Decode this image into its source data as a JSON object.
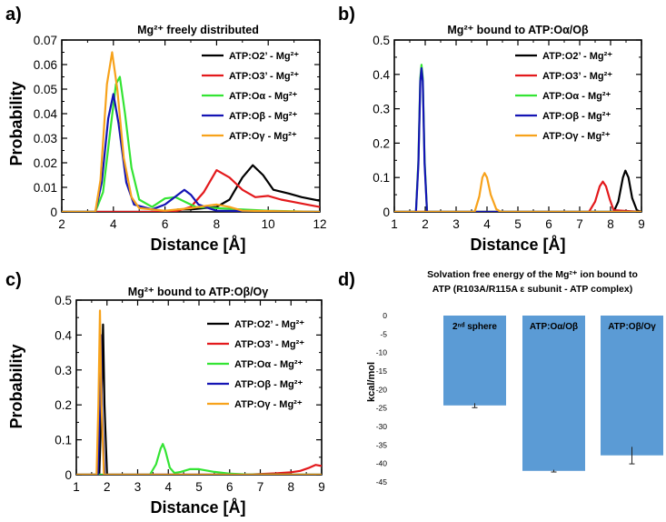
{
  "panels": [
    "a)",
    "b)",
    "c)",
    "d)"
  ],
  "chart_data": [
    {
      "panel": "a)",
      "type": "line",
      "title": "Mg²⁺ freely distributed",
      "xlabel": "Distance [Å]",
      "ylabel": "Probability",
      "xlim": [
        2,
        12
      ],
      "ylim": [
        0,
        0.07
      ],
      "xticks": [
        2,
        4,
        6,
        8,
        10,
        12
      ],
      "yticks": [
        0,
        0.01,
        0.02,
        0.03,
        0.04,
        0.05,
        0.06,
        0.07
      ],
      "ytick_labels": [
        "0",
        "0.01",
        "0.02",
        "0.03",
        "0.04",
        "0.05",
        "0.06",
        "0.07"
      ],
      "legend_position": "top-right",
      "series": [
        {
          "name": "ATP:O2’ - Mg²⁺",
          "color": "#000000",
          "points": [
            [
              2,
              0
            ],
            [
              6,
              0
            ],
            [
              6.5,
              0.001
            ],
            [
              7,
              0.001
            ],
            [
              7.5,
              0.0015
            ],
            [
              8,
              0.002
            ],
            [
              8.5,
              0.005
            ],
            [
              9,
              0.014
            ],
            [
              9.4,
              0.019
            ],
            [
              9.8,
              0.015
            ],
            [
              10.2,
              0.009
            ],
            [
              10.8,
              0.0075
            ],
            [
              11.3,
              0.006
            ],
            [
              12,
              0.0045
            ]
          ]
        },
        {
          "name": "ATP:O3’ - Mg²⁺",
          "color": "#e3191c",
          "points": [
            [
              2,
              0
            ],
            [
              6,
              0
            ],
            [
              6.5,
              0.0005
            ],
            [
              7,
              0.002
            ],
            [
              7.5,
              0.008
            ],
            [
              8,
              0.017
            ],
            [
              8.5,
              0.014
            ],
            [
              9,
              0.009
            ],
            [
              9.5,
              0.006
            ],
            [
              10,
              0.0065
            ],
            [
              10.5,
              0.005
            ],
            [
              11,
              0.004
            ],
            [
              11.5,
              0.003
            ],
            [
              12,
              0.002
            ]
          ]
        },
        {
          "name": "ATP:Oα  - Mg²⁺",
          "color": "#33e433",
          "points": [
            [
              2,
              0
            ],
            [
              3.3,
              0
            ],
            [
              3.6,
              0.008
            ],
            [
              3.9,
              0.035
            ],
            [
              4.1,
              0.052
            ],
            [
              4.25,
              0.055
            ],
            [
              4.45,
              0.04
            ],
            [
              4.7,
              0.018
            ],
            [
              5,
              0.005
            ],
            [
              5.5,
              0.002
            ],
            [
              6,
              0.0055
            ],
            [
              6.4,
              0.006
            ],
            [
              6.8,
              0.004
            ],
            [
              7.2,
              0.002
            ],
            [
              8,
              0.0015
            ],
            [
              9,
              0.001
            ],
            [
              10,
              0.0005
            ],
            [
              12,
              0
            ]
          ]
        },
        {
          "name": "ATP:Oβ  - Mg²⁺",
          "color": "#1414b4",
          "points": [
            [
              2,
              0
            ],
            [
              3.3,
              0
            ],
            [
              3.55,
              0.012
            ],
            [
              3.8,
              0.038
            ],
            [
              4,
              0.048
            ],
            [
              4.2,
              0.036
            ],
            [
              4.5,
              0.012
            ],
            [
              4.8,
              0.003
            ],
            [
              5.5,
              0.001
            ],
            [
              6,
              0.003
            ],
            [
              6.5,
              0.007
            ],
            [
              6.75,
              0.009
            ],
            [
              7,
              0.007
            ],
            [
              7.3,
              0.003
            ],
            [
              7.7,
              0.0015
            ],
            [
              8,
              0.0005
            ],
            [
              12,
              0
            ]
          ]
        },
        {
          "name": "ATP:Oγ  - Mg²⁺",
          "color": "#f7a21b",
          "points": [
            [
              2,
              0
            ],
            [
              3.3,
              0
            ],
            [
              3.5,
              0.013
            ],
            [
              3.75,
              0.052
            ],
            [
              3.95,
              0.065
            ],
            [
              4.15,
              0.05
            ],
            [
              4.4,
              0.022
            ],
            [
              4.7,
              0.006
            ],
            [
              5,
              0.0015
            ],
            [
              5.5,
              0.001
            ],
            [
              6,
              0.0005
            ],
            [
              7,
              0.0015
            ],
            [
              7.6,
              0.0025
            ],
            [
              8,
              0.003
            ],
            [
              8.5,
              0.002
            ],
            [
              9,
              0.0005
            ],
            [
              12,
              0
            ]
          ]
        }
      ]
    },
    {
      "panel": "b)",
      "type": "line",
      "title": "Mg²⁺ bound to ATP:Oα/Oβ",
      "xlabel": "Distance [Å]",
      "ylabel": "",
      "xlim": [
        1,
        9
      ],
      "ylim": [
        0,
        0.5
      ],
      "xticks": [
        1,
        2,
        3,
        4,
        5,
        6,
        7,
        8,
        9
      ],
      "yticks": [
        0,
        0.1,
        0.2,
        0.3,
        0.4,
        0.5
      ],
      "ytick_labels": [
        "0",
        "0.1",
        "0.2",
        "0.3",
        "0.4",
        "0.5"
      ],
      "legend_position": "top-right",
      "series": [
        {
          "name": "ATP:O2’ - Mg²⁺",
          "color": "#000000",
          "points": [
            [
              1,
              0
            ],
            [
              8.1,
              0
            ],
            [
              8.25,
              0.03
            ],
            [
              8.4,
              0.1
            ],
            [
              8.48,
              0.12
            ],
            [
              8.58,
              0.1
            ],
            [
              8.7,
              0.04
            ],
            [
              8.85,
              0.005
            ],
            [
              9,
              0
            ]
          ]
        },
        {
          "name": "ATP:O3’ - Mg²⁺",
          "color": "#e3191c",
          "points": [
            [
              1,
              0
            ],
            [
              7.3,
              0
            ],
            [
              7.5,
              0.03
            ],
            [
              7.65,
              0.075
            ],
            [
              7.75,
              0.088
            ],
            [
              7.85,
              0.075
            ],
            [
              7.98,
              0.035
            ],
            [
              8.1,
              0.005
            ],
            [
              9,
              0
            ]
          ]
        },
        {
          "name": "ATP:Oα  - Mg²⁺",
          "color": "#33e433",
          "points": [
            [
              1,
              0
            ],
            [
              1.7,
              0
            ],
            [
              1.78,
              0.15
            ],
            [
              1.84,
              0.39
            ],
            [
              1.88,
              0.428
            ],
            [
              1.92,
              0.39
            ],
            [
              1.98,
              0.15
            ],
            [
              2.06,
              0
            ],
            [
              9,
              0
            ]
          ]
        },
        {
          "name": "ATP:Oβ  - Mg²⁺",
          "color": "#1414b4",
          "points": [
            [
              1,
              0
            ],
            [
              1.7,
              0
            ],
            [
              1.78,
              0.14
            ],
            [
              1.84,
              0.38
            ],
            [
              1.88,
              0.418
            ],
            [
              1.92,
              0.38
            ],
            [
              1.98,
              0.14
            ],
            [
              2.06,
              0
            ],
            [
              9,
              0
            ]
          ]
        },
        {
          "name": "ATP:Oγ  - Mg²⁺",
          "color": "#f7a21b",
          "points": [
            [
              1,
              0
            ],
            [
              3.6,
              0
            ],
            [
              3.75,
              0.045
            ],
            [
              3.85,
              0.1
            ],
            [
              3.92,
              0.113
            ],
            [
              4,
              0.1
            ],
            [
              4.12,
              0.05
            ],
            [
              4.3,
              0.008
            ],
            [
              4.45,
              0
            ],
            [
              9,
              0
            ]
          ]
        }
      ]
    },
    {
      "panel": "c)",
      "type": "line",
      "title": "Mg²⁺ bound to ATP:Oβ/Oγ",
      "xlabel": "Distance [Å]",
      "ylabel": "Probability",
      "xlim": [
        1,
        9
      ],
      "ylim": [
        0,
        0.5
      ],
      "xticks": [
        1,
        2,
        3,
        4,
        5,
        6,
        7,
        8,
        9
      ],
      "yticks": [
        0,
        0.1,
        0.2,
        0.3,
        0.4,
        0.5
      ],
      "ytick_labels": [
        "0",
        "0.1",
        "0.2",
        "0.3",
        "0.4",
        "0.5"
      ],
      "legend_position": "top-right",
      "series": [
        {
          "name": "ATP:O2’ - Mg²⁺",
          "color": "#000000",
          "points": [
            [
              1,
              0
            ],
            [
              1.75,
              0
            ],
            [
              1.82,
              0.2
            ],
            [
              1.87,
              0.43
            ],
            [
              1.92,
              0.2
            ],
            [
              2,
              0
            ],
            [
              9,
              0
            ]
          ]
        },
        {
          "name": "ATP:O3’ - Mg²⁺",
          "color": "#e3191c",
          "points": [
            [
              1,
              0
            ],
            [
              6.5,
              0
            ],
            [
              7,
              0.002
            ],
            [
              7.5,
              0.004
            ],
            [
              8,
              0.007
            ],
            [
              8.3,
              0.011
            ],
            [
              8.6,
              0.02
            ],
            [
              8.8,
              0.028
            ],
            [
              9,
              0.025
            ]
          ]
        },
        {
          "name": "ATP:Oα  - Mg²⁺",
          "color": "#33e433",
          "points": [
            [
              1,
              0
            ],
            [
              3.4,
              0
            ],
            [
              3.6,
              0.03
            ],
            [
              3.75,
              0.075
            ],
            [
              3.82,
              0.088
            ],
            [
              3.9,
              0.07
            ],
            [
              4.05,
              0.02
            ],
            [
              4.2,
              0.005
            ],
            [
              4.4,
              0.008
            ],
            [
              4.7,
              0.016
            ],
            [
              5,
              0.016
            ],
            [
              5.5,
              0.008
            ],
            [
              6,
              0.003
            ],
            [
              6.5,
              0.001
            ],
            [
              9,
              0
            ]
          ]
        },
        {
          "name": "ATP:Oβ  - Mg²⁺",
          "color": "#1414b4",
          "points": [
            [
              1,
              0
            ],
            [
              1.7,
              0
            ],
            [
              1.76,
              0.18
            ],
            [
              1.8,
              0.4
            ],
            [
              1.84,
              0.18
            ],
            [
              1.92,
              0
            ],
            [
              9,
              0
            ]
          ]
        },
        {
          "name": "ATP:Oγ  - Mg²⁺",
          "color": "#f7a21b",
          "points": [
            [
              1,
              0
            ],
            [
              1.66,
              0
            ],
            [
              1.72,
              0.2
            ],
            [
              1.77,
              0.47
            ],
            [
              1.82,
              0.2
            ],
            [
              1.9,
              0
            ],
            [
              9,
              0
            ]
          ]
        }
      ]
    },
    {
      "panel": "d)",
      "type": "bar",
      "title_line1": "Solvation free energy of the Mg²⁺ ion bound to",
      "title_line2": "ATP (R103A/R115A ε subunit - ATP complex)",
      "ylabel": "kcal/mol",
      "ylim": [
        -45,
        0
      ],
      "yticks": [
        0,
        -5,
        -10,
        -15,
        -20,
        -25,
        -30,
        -35,
        -40,
        -45
      ],
      "ytick_labels": [
        "0",
        "-5",
        "-10",
        "-15",
        "-20",
        "-25",
        "-30",
        "-35",
        "-40",
        "-45"
      ],
      "categories": [
        "2ⁿᵈ sphere",
        "ATP:Oα/Oβ",
        "ATP:Oβ/Oγ"
      ],
      "values": [
        -24.3,
        -42.0,
        -37.8
      ],
      "errors": [
        0.6,
        0.3,
        2.3
      ],
      "bar_color": "#5b9bd5"
    }
  ]
}
